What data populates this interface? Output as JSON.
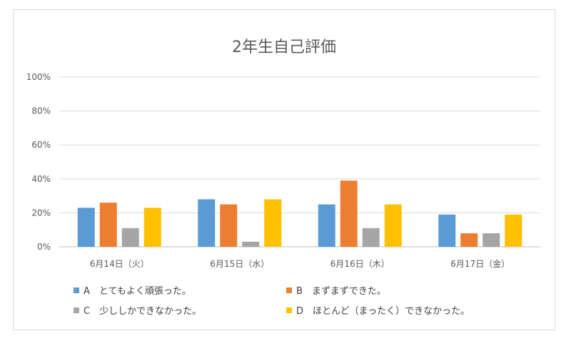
{
  "chart_data": {
    "type": "bar",
    "title": "2年生自己評価",
    "xlabel": "",
    "ylabel": "",
    "categories": [
      "6月14日（火）",
      "6月15日（水）",
      "6月16日（木）",
      "6月17日（金）"
    ],
    "y_ticks": [
      "0%",
      "20%",
      "40%",
      "60%",
      "80%",
      "100%"
    ],
    "ylim": [
      0,
      100
    ],
    "grid": true,
    "legend_position": "bottom",
    "series": [
      {
        "name": "A　とてもよく頑張った。",
        "color": "#5b9bd5",
        "values": [
          23,
          28,
          25,
          19
        ]
      },
      {
        "name": "B　まずまずできた。",
        "color": "#ed7d31",
        "values": [
          26,
          25,
          39,
          8
        ]
      },
      {
        "name": "C　少ししかできなかった。",
        "color": "#a5a5a5",
        "values": [
          11,
          3,
          11,
          8
        ]
      },
      {
        "name": "D　ほとんど（まったく）できなかった。",
        "color": "#ffc000",
        "values": [
          23,
          28,
          25,
          19
        ]
      }
    ]
  }
}
